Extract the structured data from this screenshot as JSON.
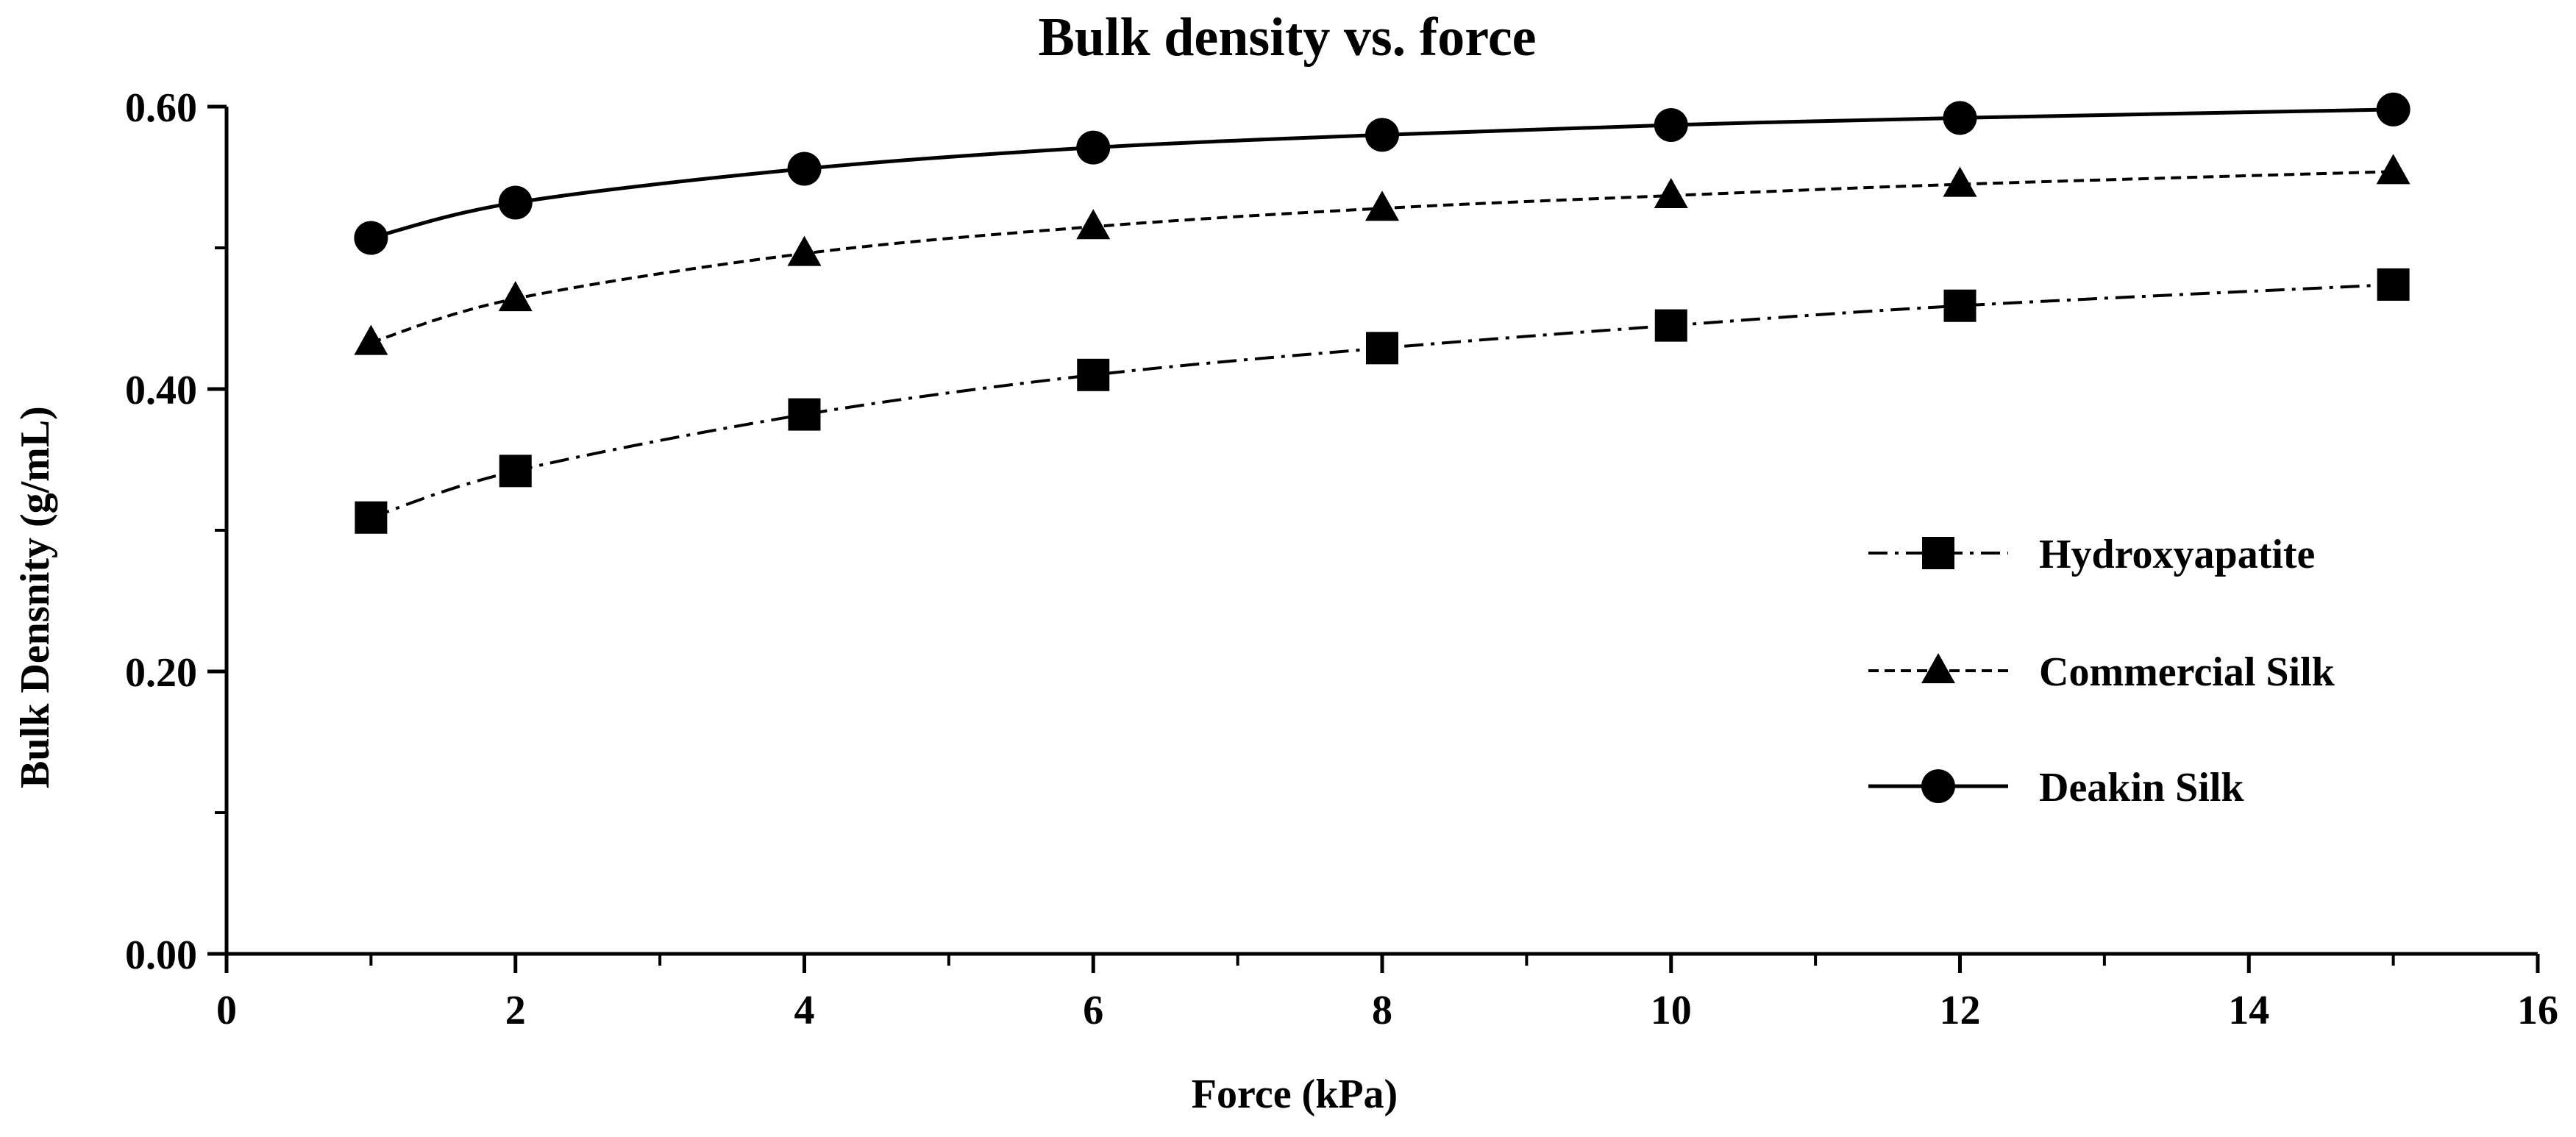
{
  "chart_data": {
    "type": "line",
    "title": "Bulk density vs. force",
    "xlabel": "Force (kPa)",
    "ylabel": "Bulk Densnity (g/mL)",
    "xlim": [
      0,
      16
    ],
    "ylim": [
      0,
      0.6
    ],
    "x_ticks": [
      "0",
      "2",
      "4",
      "6",
      "8",
      "10",
      "12",
      "14",
      "16"
    ],
    "y_ticks": [
      "0.00",
      "0.20",
      "0.40",
      "0.60"
    ],
    "x": [
      1,
      2,
      4,
      6,
      8,
      10,
      12,
      15
    ],
    "legend_position": "right-middle",
    "series": [
      {
        "name": "Hydroxyapatite",
        "marker": "square",
        "line_style": "dash-dot",
        "values": [
          0.309,
          0.342,
          0.382,
          0.41,
          0.429,
          0.445,
          0.459,
          0.474
        ]
      },
      {
        "name": "Commercial Silk",
        "marker": "triangle",
        "line_style": "dashed",
        "values": [
          0.433,
          0.464,
          0.496,
          0.515,
          0.528,
          0.537,
          0.545,
          0.554
        ]
      },
      {
        "name": "Deakin Silk",
        "marker": "circle",
        "line_style": "solid",
        "values": [
          0.507,
          0.532,
          0.556,
          0.571,
          0.58,
          0.587,
          0.592,
          0.598
        ]
      }
    ],
    "colors": {
      "line": "#000000",
      "background": "#ffffff"
    }
  }
}
